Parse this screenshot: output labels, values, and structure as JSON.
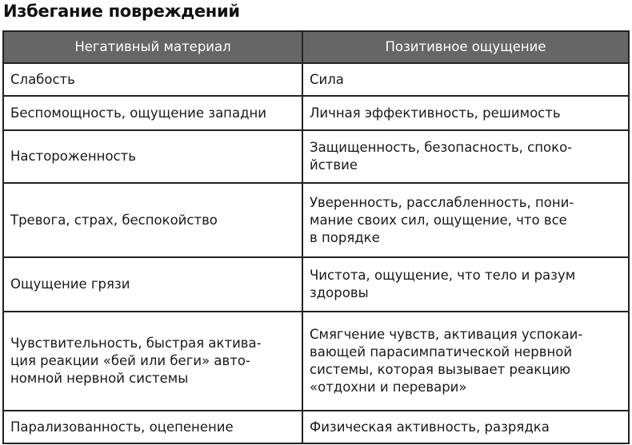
{
  "title": "Избегание повреждений",
  "table": {
    "headers": [
      "Негативный материал",
      "Позитивное ощущение"
    ],
    "rows": [
      [
        "Слабость",
        "Сила"
      ],
      [
        "Беспомощность, ощущение западни",
        "Личная эффективность, решимость"
      ],
      [
        "Настороженность",
        "Защищенность, безопасность, споко-\nйствие"
      ],
      [
        "Тревога, страх, беспокойство",
        "Уверенность, расслабленность, пони-\nмание своих сил, ощущение, что все\nв порядке"
      ],
      [
        "Ощущение грязи",
        "Чистота, ощущение, что тело и разум\nздоровы"
      ],
      [
        "Чувствительность, быстрая актива-\nция реакции «бей или беги» авто-\nномной нервной системы",
        "Смягчение чувств, активация успокаи-\nвающей парасимпатической нервной\nсистемы, которая вызывает реакцию\n«отдохни и перевари»"
      ],
      [
        "Парализованность, оцепенение",
        "Физическая активность, разрядка"
      ]
    ]
  }
}
